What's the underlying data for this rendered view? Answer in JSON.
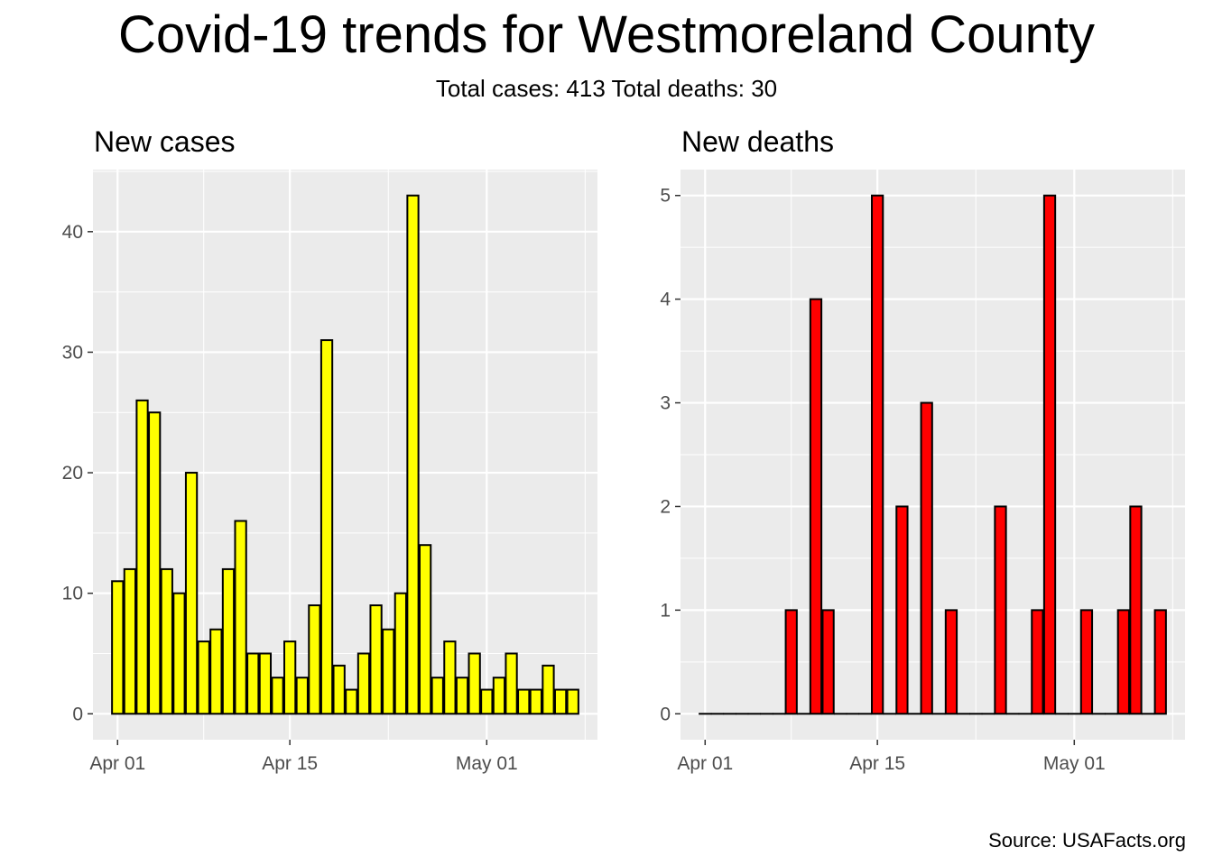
{
  "title": "Covid-19 trends for Westmoreland County",
  "subtitle": "Total cases: 413  Total deaths: 30",
  "caption": "Source: USAFacts.org",
  "colors": {
    "panel_bg": "#ebebeb",
    "grid": "#ffffff",
    "cases_fill": "#ffff00",
    "deaths_fill": "#ff0000",
    "bar_outline": "#000000"
  },
  "chart_data": [
    {
      "type": "bar",
      "title": "New cases",
      "xlabel": "",
      "ylabel": "",
      "x_dates": [
        "2020-04-01",
        "2020-04-02",
        "2020-04-03",
        "2020-04-04",
        "2020-04-05",
        "2020-04-06",
        "2020-04-07",
        "2020-04-08",
        "2020-04-09",
        "2020-04-10",
        "2020-04-11",
        "2020-04-12",
        "2020-04-13",
        "2020-04-14",
        "2020-04-15",
        "2020-04-16",
        "2020-04-17",
        "2020-04-18",
        "2020-04-19",
        "2020-04-20",
        "2020-04-21",
        "2020-04-22",
        "2020-04-23",
        "2020-04-24",
        "2020-04-25",
        "2020-04-26",
        "2020-04-27",
        "2020-04-28",
        "2020-04-29",
        "2020-04-30",
        "2020-05-01",
        "2020-05-02",
        "2020-05-03",
        "2020-05-04",
        "2020-05-05",
        "2020-05-06",
        "2020-05-07",
        "2020-05-08"
      ],
      "values": [
        11,
        12,
        26,
        25,
        12,
        10,
        20,
        6,
        7,
        12,
        16,
        5,
        5,
        3,
        6,
        3,
        9,
        31,
        4,
        2,
        5,
        9,
        7,
        10,
        43,
        14,
        3,
        6,
        3,
        5,
        2,
        3,
        5,
        2,
        2,
        4,
        2,
        2
      ],
      "x_ticks": [
        {
          "date": "2020-04-01",
          "label": "Apr 01"
        },
        {
          "date": "2020-04-15",
          "label": "Apr 15"
        },
        {
          "date": "2020-05-01",
          "label": "May 01"
        }
      ],
      "y_ticks": [
        0,
        10,
        20,
        30,
        40
      ],
      "ylim": [
        -2.15,
        45.15
      ],
      "xlim": [
        "2020-03-30",
        "2020-05-10"
      ],
      "grid": true,
      "fill": "#ffff00"
    },
    {
      "type": "bar",
      "title": "New deaths",
      "xlabel": "",
      "ylabel": "",
      "x_dates": [
        "2020-04-01",
        "2020-04-02",
        "2020-04-03",
        "2020-04-04",
        "2020-04-05",
        "2020-04-06",
        "2020-04-07",
        "2020-04-08",
        "2020-04-09",
        "2020-04-10",
        "2020-04-11",
        "2020-04-12",
        "2020-04-13",
        "2020-04-14",
        "2020-04-15",
        "2020-04-16",
        "2020-04-17",
        "2020-04-18",
        "2020-04-19",
        "2020-04-20",
        "2020-04-21",
        "2020-04-22",
        "2020-04-23",
        "2020-04-24",
        "2020-04-25",
        "2020-04-26",
        "2020-04-27",
        "2020-04-28",
        "2020-04-29",
        "2020-04-30",
        "2020-05-01",
        "2020-05-02",
        "2020-05-03",
        "2020-05-04",
        "2020-05-05",
        "2020-05-06",
        "2020-05-07",
        "2020-05-08"
      ],
      "values": [
        0,
        0,
        0,
        0,
        0,
        0,
        0,
        1,
        0,
        4,
        1,
        0,
        0,
        0,
        5,
        0,
        2,
        0,
        3,
        0,
        1,
        0,
        0,
        0,
        2,
        0,
        0,
        1,
        5,
        0,
        0,
        1,
        0,
        0,
        1,
        2,
        0,
        1
      ],
      "x_ticks": [
        {
          "date": "2020-04-01",
          "label": "Apr 01"
        },
        {
          "date": "2020-04-15",
          "label": "Apr 15"
        },
        {
          "date": "2020-05-01",
          "label": "May 01"
        }
      ],
      "y_ticks": [
        0,
        1,
        2,
        3,
        4,
        5
      ],
      "ylim": [
        -0.25,
        5.25
      ],
      "xlim": [
        "2020-03-30",
        "2020-05-10"
      ],
      "grid": true,
      "fill": "#ff0000"
    }
  ]
}
